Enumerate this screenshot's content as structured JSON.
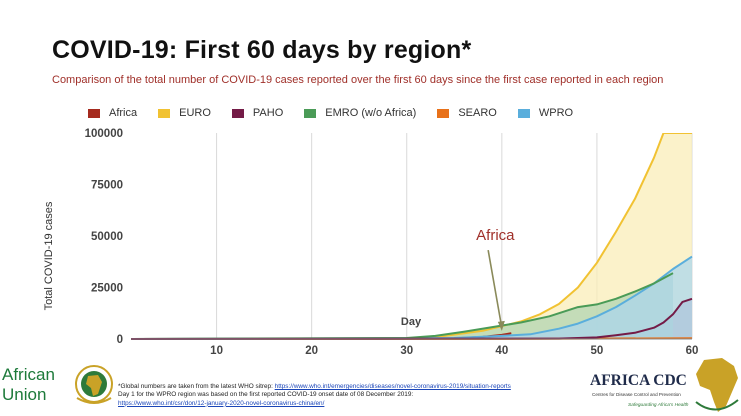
{
  "slide": {
    "title": "COVID-19: First 60 days by region*",
    "subtitle": "Comparison of the total number of COVID-19 cases reported over the first 60 days since the first case reported in each region"
  },
  "footnote": {
    "line1_text": "*Global numbers are taken from the latest WHO sitrep: ",
    "line1_link": "https://www.who.int/emergencies/diseases/novel-coronavirus-2019/situation-reports",
    "line2_text": "Day 1 for the WPRO region was based on the first reported COVID-19 onset date of 08 December 2019:",
    "line2_link": "https://www.who.int/csr/don/12-january-2020-novel-coronavirus-china/en/"
  },
  "logos": {
    "african_union": {
      "line1": "African",
      "line2": "Union"
    },
    "africa_cdc": {
      "name": "AFRICA CDC",
      "subtitle": "Centres for Disease Control and Prevention",
      "tagline": "Safeguarding Africa's Health"
    }
  },
  "chart_data": {
    "type": "area",
    "title": "",
    "xlabel": "Day",
    "ylabel": "Total COVID-19 cases",
    "xlim": [
      1,
      60
    ],
    "ylim": [
      0,
      100000
    ],
    "x_ticks": [
      10,
      20,
      30,
      40,
      50,
      60
    ],
    "y_ticks": [
      0,
      25000,
      50000,
      75000,
      100000
    ],
    "y_tick_labels": [
      "0",
      "25000",
      "50000",
      "75000",
      "100000"
    ],
    "grid": "vertical",
    "legend_position": "top",
    "annotation": {
      "text": "Africa",
      "x": 40,
      "y": 2500,
      "label_x": 37.3,
      "label_y": 48000,
      "color": "#a0302a"
    },
    "series": [
      {
        "name": "Africa",
        "color": "#a52a1e",
        "fill": false,
        "points": [
          [
            1,
            0
          ],
          [
            30,
            100
          ],
          [
            35,
            300
          ],
          [
            38,
            1000
          ],
          [
            40,
            2000
          ],
          [
            41,
            2800
          ]
        ]
      },
      {
        "name": "EURO",
        "color": "#f1c232",
        "fill": true,
        "fill_color": "#faedb5",
        "points": [
          [
            1,
            0
          ],
          [
            30,
            300
          ],
          [
            34,
            1500
          ],
          [
            38,
            4000
          ],
          [
            42,
            8500
          ],
          [
            44,
            12000
          ],
          [
            46,
            17000
          ],
          [
            48,
            25000
          ],
          [
            50,
            37000
          ],
          [
            52,
            52000
          ],
          [
            54,
            68000
          ],
          [
            56,
            88000
          ],
          [
            57,
            100000
          ],
          [
            60,
            100000
          ]
        ]
      },
      {
        "name": "PAHO",
        "color": "#741b47",
        "fill": true,
        "fill_color": "#bd9aad",
        "points": [
          [
            1,
            0
          ],
          [
            46,
            200
          ],
          [
            50,
            800
          ],
          [
            52,
            1800
          ],
          [
            54,
            3000
          ],
          [
            56,
            5500
          ],
          [
            57,
            8000
          ],
          [
            58,
            12000
          ],
          [
            59,
            18000
          ],
          [
            60,
            19500
          ]
        ]
      },
      {
        "name": "EMRO (w/o Africa)",
        "color": "#4a9b57",
        "fill": true,
        "fill_color": "#aed3b2",
        "points": [
          [
            1,
            0
          ],
          [
            30,
            500
          ],
          [
            33,
            1500
          ],
          [
            36,
            3500
          ],
          [
            39,
            5800
          ],
          [
            42,
            8000
          ],
          [
            45,
            11000
          ],
          [
            48,
            15500
          ],
          [
            50,
            16800
          ],
          [
            52,
            19500
          ],
          [
            54,
            23000
          ],
          [
            56,
            27000
          ],
          [
            58,
            32000
          ]
        ]
      },
      {
        "name": "SEARO",
        "color": "#e8711a",
        "fill": false,
        "points": [
          [
            1,
            0
          ],
          [
            40,
            0
          ],
          [
            60,
            400
          ]
        ]
      },
      {
        "name": "WPRO",
        "color": "#5aaedc",
        "fill": true,
        "fill_color": "#a9d6ee",
        "points": [
          [
            1,
            0
          ],
          [
            35,
            500
          ],
          [
            40,
            1500
          ],
          [
            43,
            2300
          ],
          [
            46,
            5000
          ],
          [
            48,
            7500
          ],
          [
            50,
            11000
          ],
          [
            52,
            15500
          ],
          [
            54,
            21000
          ],
          [
            56,
            27000
          ],
          [
            58,
            34000
          ],
          [
            60,
            40000
          ]
        ]
      }
    ]
  }
}
